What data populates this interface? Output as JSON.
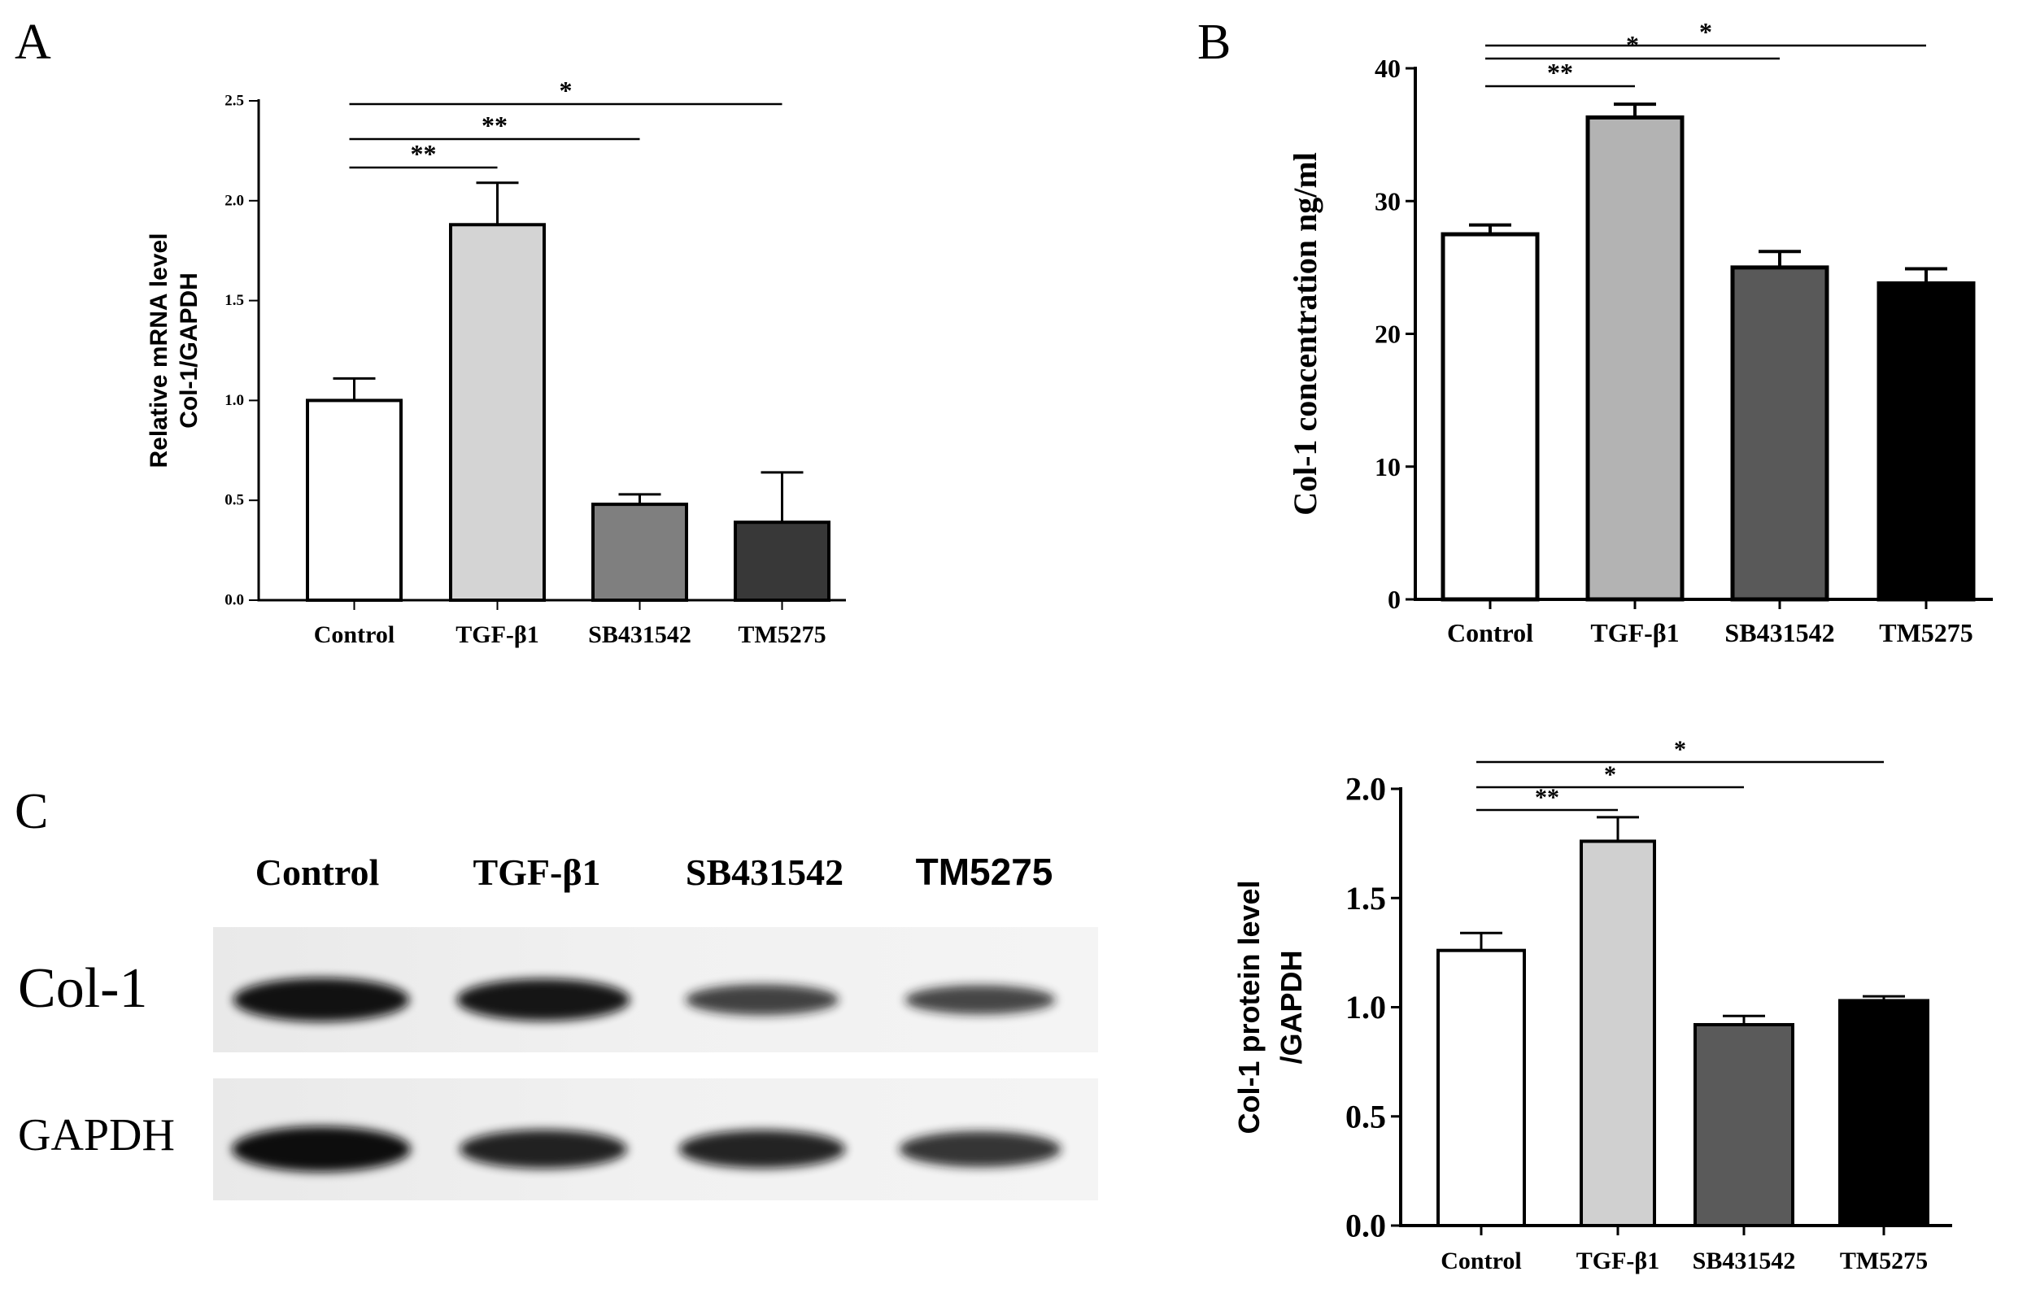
{
  "panels": {
    "a": {
      "letter": "A"
    },
    "b": {
      "letter": "B"
    },
    "c": {
      "letter": "C"
    }
  },
  "chart_data": [
    {
      "panel": "A",
      "type": "bar",
      "categories": [
        "Control",
        "TGF-β1",
        "SB431542",
        "TM5275"
      ],
      "values": [
        1.0,
        1.88,
        0.48,
        0.39
      ],
      "errors": [
        0.11,
        0.21,
        0.05,
        0.25
      ],
      "bar_colors": [
        "#ffffff",
        "#d4d4d4",
        "#7f7f7f",
        "#383838"
      ],
      "ylabel_lines": [
        "Relative mRNA  level",
        "Col-1/GAPDH"
      ],
      "ylim": [
        0,
        2.5
      ],
      "yticks": [
        0.0,
        0.5,
        1.0,
        1.5,
        2.0,
        2.5
      ],
      "ytick_labels": [
        "0.0",
        "0.5",
        "1.0",
        "1.5",
        "2.0",
        "2.5"
      ],
      "significance": [
        {
          "from": 0,
          "to": 1,
          "label": "**"
        },
        {
          "from": 0,
          "to": 2,
          "label": "**"
        },
        {
          "from": 0,
          "to": 3,
          "label": "*"
        }
      ]
    },
    {
      "panel": "B",
      "type": "bar",
      "categories": [
        "Control",
        "TGF-β1",
        "SB431542",
        "TM5275"
      ],
      "values": [
        27.5,
        36.3,
        25.0,
        23.8
      ],
      "errors": [
        0.7,
        1.0,
        1.2,
        1.1
      ],
      "bar_colors": [
        "#ffffff",
        "#b3b3b3",
        "#595959",
        "#000000"
      ],
      "ylabel_lines": [
        "Col-1 concentration ng/ml"
      ],
      "ylim": [
        0,
        40
      ],
      "yticks": [
        0,
        10,
        20,
        30,
        40
      ],
      "ytick_labels": [
        "0",
        "10",
        "20",
        "30",
        "40"
      ],
      "significance": [
        {
          "from": 0,
          "to": 1,
          "label": "**"
        },
        {
          "from": 0,
          "to": 2,
          "label": "*"
        },
        {
          "from": 0,
          "to": 3,
          "label": "*"
        }
      ]
    },
    {
      "panel": "C",
      "type": "bar",
      "categories": [
        "Control",
        "TGF-β1",
        "SB431542",
        "TM5275"
      ],
      "values": [
        1.26,
        1.76,
        0.92,
        1.03
      ],
      "errors": [
        0.08,
        0.11,
        0.04,
        0.02
      ],
      "bar_colors": [
        "#ffffff",
        "#d0d0d0",
        "#5a5a5a",
        "#000000"
      ],
      "ylabel_lines": [
        "Col-1 protein level",
        "/GAPDH"
      ],
      "ylim": [
        0,
        2.0
      ],
      "yticks": [
        0.0,
        0.5,
        1.0,
        1.5,
        2.0
      ],
      "ytick_labels": [
        "0.0",
        "0.5",
        "1.0",
        "1.5",
        "2.0"
      ],
      "significance": [
        {
          "from": 0,
          "to": 1,
          "label": "**"
        },
        {
          "from": 0,
          "to": 2,
          "label": "*"
        },
        {
          "from": 0,
          "to": 3,
          "label": "*"
        }
      ]
    }
  ],
  "blot": {
    "lane_labels": [
      "Control",
      "TGF-β1",
      "SB431542",
      "TM5275"
    ],
    "rows": [
      {
        "label": "Col-1",
        "intensities": [
          0.95,
          0.9,
          0.55,
          0.5
        ]
      },
      {
        "label": "GAPDH",
        "intensities": [
          1.0,
          0.8,
          0.78,
          0.7
        ]
      }
    ]
  }
}
